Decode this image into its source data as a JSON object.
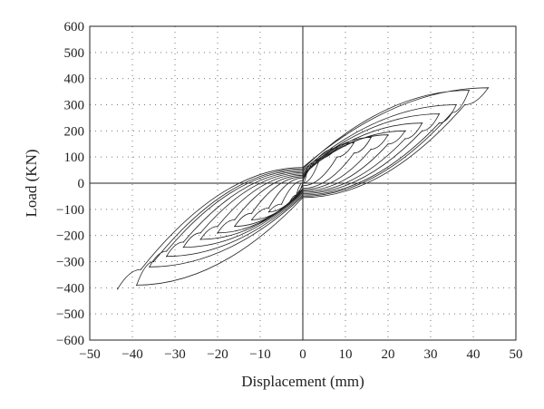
{
  "chart_data": {
    "type": "line",
    "title": "",
    "xlabel": "Displacement (mm)",
    "ylabel": "Load (KN)",
    "xlim": [
      -50,
      50
    ],
    "ylim": [
      -600,
      600
    ],
    "xticks": [
      -50,
      -40,
      -30,
      -20,
      -10,
      0,
      10,
      20,
      30,
      40,
      50
    ],
    "yticks": [
      600,
      500,
      400,
      300,
      200,
      100,
      0,
      -100,
      -200,
      -300,
      -400,
      -500,
      -600
    ],
    "grid": true,
    "series": [
      {
        "values": [
          {
            "x": 0,
            "y": 0
          },
          {
            "x": 1,
            "y": 48
          },
          {
            "x": 2,
            "y": 75
          },
          {
            "x": 0,
            "y": 2
          },
          {
            "x": -1.5,
            "y": -45
          },
          {
            "x": -3,
            "y": -70
          },
          {
            "x": 0,
            "y": 0
          },
          {
            "x": 4,
            "y": 95
          },
          {
            "x": 8,
            "y": 135
          },
          {
            "x": 0,
            "y": 10
          },
          {
            "x": -5,
            "y": -80
          },
          {
            "x": -8,
            "y": -110
          },
          {
            "x": 0,
            "y": -10
          },
          {
            "x": 8,
            "y": 100
          },
          {
            "x": 12,
            "y": 155
          },
          {
            "x": 0,
            "y": 20
          },
          {
            "x": -8,
            "y": -95
          },
          {
            "x": -12,
            "y": -140
          },
          {
            "x": 0,
            "y": -20
          },
          {
            "x": 12,
            "y": 115
          },
          {
            "x": 16,
            "y": 175
          },
          {
            "x": 0,
            "y": 25
          },
          {
            "x": -12,
            "y": -115
          },
          {
            "x": -16,
            "y": -165
          },
          {
            "x": 0,
            "y": -25
          },
          {
            "x": 16,
            "y": 130
          },
          {
            "x": 20,
            "y": 185
          },
          {
            "x": 0,
            "y": 30
          },
          {
            "x": -16,
            "y": -140
          },
          {
            "x": -20,
            "y": -190
          },
          {
            "x": 0,
            "y": -30
          },
          {
            "x": 20,
            "y": 150
          },
          {
            "x": 24,
            "y": 200
          },
          {
            "x": 0,
            "y": 35
          },
          {
            "x": -20,
            "y": -165
          },
          {
            "x": -24,
            "y": -215
          },
          {
            "x": 0,
            "y": -35
          },
          {
            "x": 24,
            "y": 170
          },
          {
            "x": 28,
            "y": 230
          },
          {
            "x": 0,
            "y": 40
          },
          {
            "x": -24,
            "y": -190
          },
          {
            "x": -28,
            "y": -245
          },
          {
            "x": 0,
            "y": -40
          },
          {
            "x": 28,
            "y": 200
          },
          {
            "x": 32,
            "y": 265
          },
          {
            "x": 0,
            "y": 45
          },
          {
            "x": -28,
            "y": -225
          },
          {
            "x": -32,
            "y": -280
          },
          {
            "x": 0,
            "y": -45
          },
          {
            "x": 32,
            "y": 230
          },
          {
            "x": 36,
            "y": 300
          },
          {
            "x": 0,
            "y": 50
          },
          {
            "x": -32,
            "y": -260
          },
          {
            "x": -36,
            "y": -320
          },
          {
            "x": 0,
            "y": -50
          },
          {
            "x": 35,
            "y": 270
          },
          {
            "x": 39,
            "y": 355
          },
          {
            "x": 0,
            "y": 55
          },
          {
            "x": -35,
            "y": -300
          },
          {
            "x": -39,
            "y": -390
          },
          {
            "x": 0,
            "y": -55
          },
          {
            "x": 38,
            "y": 300
          },
          {
            "x": 43.5,
            "y": 365
          },
          {
            "x": 0,
            "y": 60
          },
          {
            "x": -38,
            "y": -330
          },
          {
            "x": -43.5,
            "y": -405
          }
        ]
      }
    ]
  }
}
